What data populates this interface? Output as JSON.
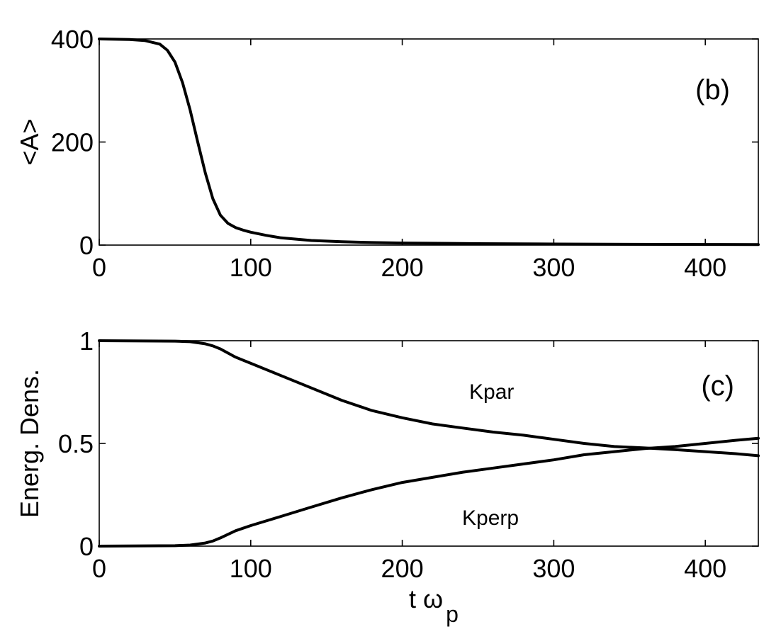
{
  "chart_data": [
    {
      "type": "line",
      "panel_label": "(b)",
      "ylabel": "<A>",
      "xlabel": "",
      "xlim": [
        0,
        435
      ],
      "ylim": [
        0,
        400
      ],
      "xticks": [
        0,
        100,
        200,
        300,
        400
      ],
      "yticks": [
        0,
        200,
        400
      ],
      "grid": false,
      "series": [
        {
          "x": [
            0,
            20,
            30,
            40,
            45,
            50,
            55,
            60,
            65,
            70,
            75,
            80,
            85,
            90,
            95,
            100,
            110,
            120,
            140,
            160,
            180,
            200,
            250,
            300,
            350,
            400,
            435
          ],
          "y": [
            400,
            399,
            397,
            390,
            378,
            355,
            315,
            262,
            200,
            140,
            90,
            58,
            42,
            34,
            29,
            25,
            19,
            14,
            9,
            6.5,
            5,
            4,
            2.8,
            2,
            1.5,
            1.2,
            1
          ]
        }
      ]
    },
    {
      "type": "line",
      "panel_label": "(c)",
      "ylabel": "Energ. Dens.",
      "xlabel": "t ω",
      "xlabel_subscript": "p",
      "xlim": [
        0,
        435
      ],
      "ylim": [
        0,
        1
      ],
      "xticks": [
        0,
        100,
        200,
        300,
        400
      ],
      "yticks": [
        0,
        0.5,
        1
      ],
      "ytick_labels": [
        "0",
        "0.5",
        "1"
      ],
      "grid": false,
      "series": [
        {
          "name": "Kpar",
          "x": [
            0,
            50,
            60,
            70,
            75,
            80,
            90,
            100,
            120,
            140,
            160,
            180,
            200,
            220,
            240,
            260,
            280,
            300,
            320,
            340,
            360,
            380,
            400,
            420,
            435
          ],
          "y": [
            1.0,
            0.998,
            0.995,
            0.985,
            0.975,
            0.96,
            0.92,
            0.89,
            0.83,
            0.77,
            0.71,
            0.66,
            0.625,
            0.595,
            0.575,
            0.555,
            0.54,
            0.52,
            0.5,
            0.485,
            0.478,
            0.47,
            0.46,
            0.45,
            0.44
          ]
        },
        {
          "name": "Kperp",
          "x": [
            0,
            50,
            60,
            70,
            75,
            80,
            90,
            100,
            120,
            140,
            160,
            180,
            200,
            220,
            240,
            260,
            280,
            300,
            320,
            340,
            360,
            380,
            400,
            420,
            435
          ],
          "y": [
            0.0,
            0.002,
            0.005,
            0.015,
            0.025,
            0.04,
            0.075,
            0.1,
            0.145,
            0.19,
            0.235,
            0.275,
            0.31,
            0.335,
            0.36,
            0.38,
            0.4,
            0.42,
            0.445,
            0.46,
            0.475,
            0.485,
            0.5,
            0.515,
            0.525
          ]
        }
      ]
    }
  ]
}
